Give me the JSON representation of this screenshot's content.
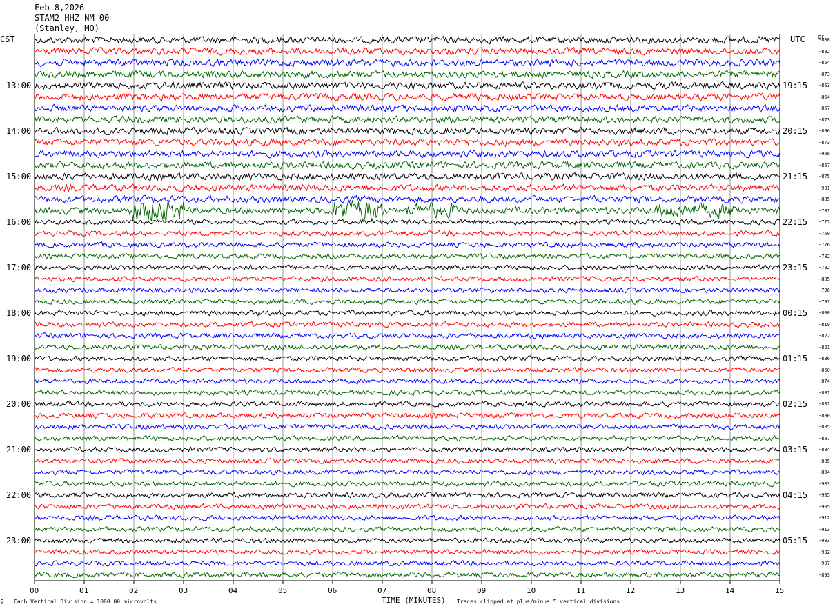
{
  "header": {
    "date": "Feb 8,2026",
    "station": "STAM2 HHZ NM 00",
    "location": "(Stanley, MO)"
  },
  "left_zone": "CST",
  "right_zone": "UTC",
  "dc_label": "DC",
  "footer": {
    "scale_note": "Each Vertical Division = 1000.00 microvolts",
    "clip_note": "Traces clipped at plus/minus 5 vertical divisions"
  },
  "chart_data": {
    "type": "line",
    "title": "",
    "xlabel": "TIME (MINUTES)",
    "xlim": [
      0,
      15
    ],
    "x_ticks": [
      "00",
      "01",
      "02",
      "03",
      "04",
      "05",
      "06",
      "07",
      "08",
      "09",
      "10",
      "11",
      "12",
      "13",
      "14",
      "15"
    ],
    "trace_count": 48,
    "trace_colors": [
      "#000000",
      "#ff0000",
      "#0000ff",
      "#006400"
    ],
    "left_hour_labels": [
      "13:00",
      "14:00",
      "15:00",
      "16:00",
      "17:00",
      "18:00",
      "19:00",
      "20:00",
      "21:00",
      "22:00",
      "23:00"
    ],
    "right_hour_labels": [
      "19:15",
      "20:15",
      "21:15",
      "22:15",
      "23:15",
      "00:15",
      "01:15",
      "02:15",
      "03:15",
      "04:15",
      "05:15"
    ],
    "dc_offsets": [
      "-888",
      "-892",
      "-854",
      "-873",
      "-863",
      "-864",
      "-867",
      "-873",
      "-896",
      "-873",
      "-966",
      "-867",
      "-875",
      "-901",
      "-885",
      "-781",
      "-777",
      "-759",
      "-776",
      "-782",
      "-792",
      "-805",
      "-796",
      "-791",
      "-800",
      "-819",
      "-822",
      "-821",
      "-836",
      "-850",
      "-874",
      "-881",
      "-881",
      "-880",
      "-885",
      "-887",
      "-884",
      "-885",
      "-894",
      "-903",
      "-905",
      "-905",
      "-912",
      "-913",
      "-903",
      "-902",
      "-907",
      "-893"
    ],
    "events": [
      {
        "trace": 15,
        "start_min": 1.9,
        "end_min": 3.0,
        "amplitude": "high"
      },
      {
        "trace": 15,
        "start_min": 6.0,
        "end_min": 7.0,
        "amplitude": "high"
      },
      {
        "trace": 15,
        "start_min": 7.5,
        "end_min": 8.5,
        "amplitude": "medium"
      },
      {
        "trace": 15,
        "start_min": 12.5,
        "end_min": 14.2,
        "amplitude": "medium"
      }
    ]
  }
}
